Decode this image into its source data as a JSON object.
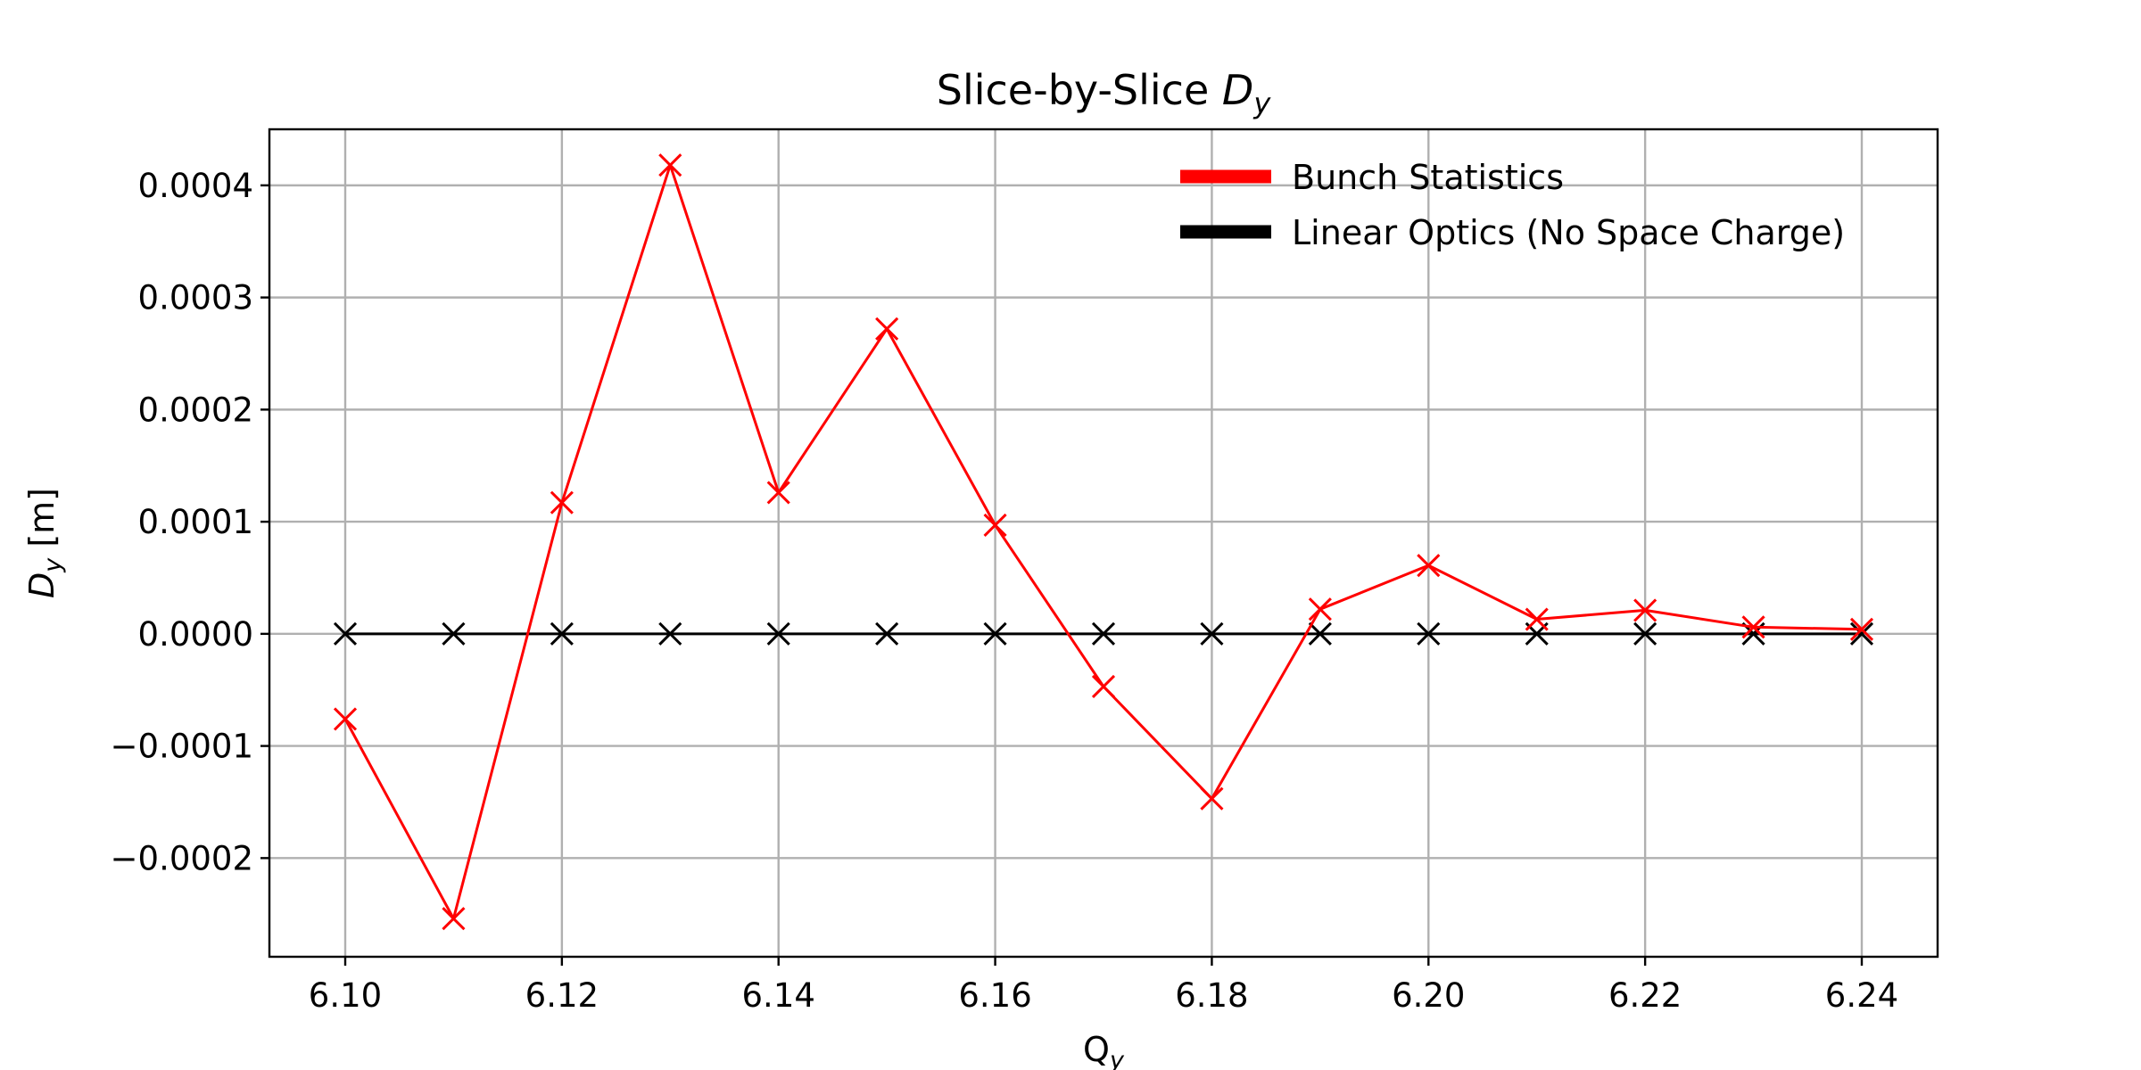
{
  "chart_data": {
    "type": "line",
    "title_main": "Slice-by-Slice ",
    "title_symbol": "D",
    "title_subscript": "y",
    "xlabel_main": "Q",
    "xlabel_subscript": "y",
    "ylabel_main": "D",
    "ylabel_subscript": "y",
    "ylabel_unit": " [m]",
    "xlim": [
      6.093,
      6.247
    ],
    "ylim": [
      -0.000288,
      0.00045
    ],
    "xticks": [
      6.1,
      6.12,
      6.14,
      6.16,
      6.18,
      6.2,
      6.22,
      6.24
    ],
    "xtick_labels": [
      "6.10",
      "6.12",
      "6.14",
      "6.16",
      "6.18",
      "6.20",
      "6.22",
      "6.24"
    ],
    "yticks": [
      -0.0002,
      -0.0001,
      0.0,
      0.0001,
      0.0002,
      0.0003,
      0.0004
    ],
    "ytick_labels": [
      "−0.0002",
      "−0.0001",
      "0.0000",
      "0.0001",
      "0.0002",
      "0.0003",
      "0.0004"
    ],
    "grid": true,
    "legend_position": "top-right",
    "x": [
      6.1,
      6.11,
      6.12,
      6.13,
      6.14,
      6.15,
      6.16,
      6.17,
      6.18,
      6.19,
      6.2,
      6.21,
      6.22,
      6.23,
      6.24
    ],
    "series": [
      {
        "name": "Bunch Statistics",
        "color": "#ff0000",
        "marker": "x",
        "values": [
          -7.6e-05,
          -0.000254,
          0.000117,
          0.000418,
          0.000126,
          0.000272,
          9.7e-05,
          -4.7e-05,
          -0.000147,
          2.2e-05,
          6.1e-05,
          1.3e-05,
          2.1e-05,
          6e-06,
          4e-06
        ]
      },
      {
        "name": "Linear Optics (No Space Charge)",
        "color": "#000000",
        "marker": "x",
        "values": [
          0,
          0,
          0,
          0,
          0,
          0,
          0,
          0,
          0,
          0,
          0,
          0,
          0,
          0,
          0
        ]
      }
    ]
  }
}
